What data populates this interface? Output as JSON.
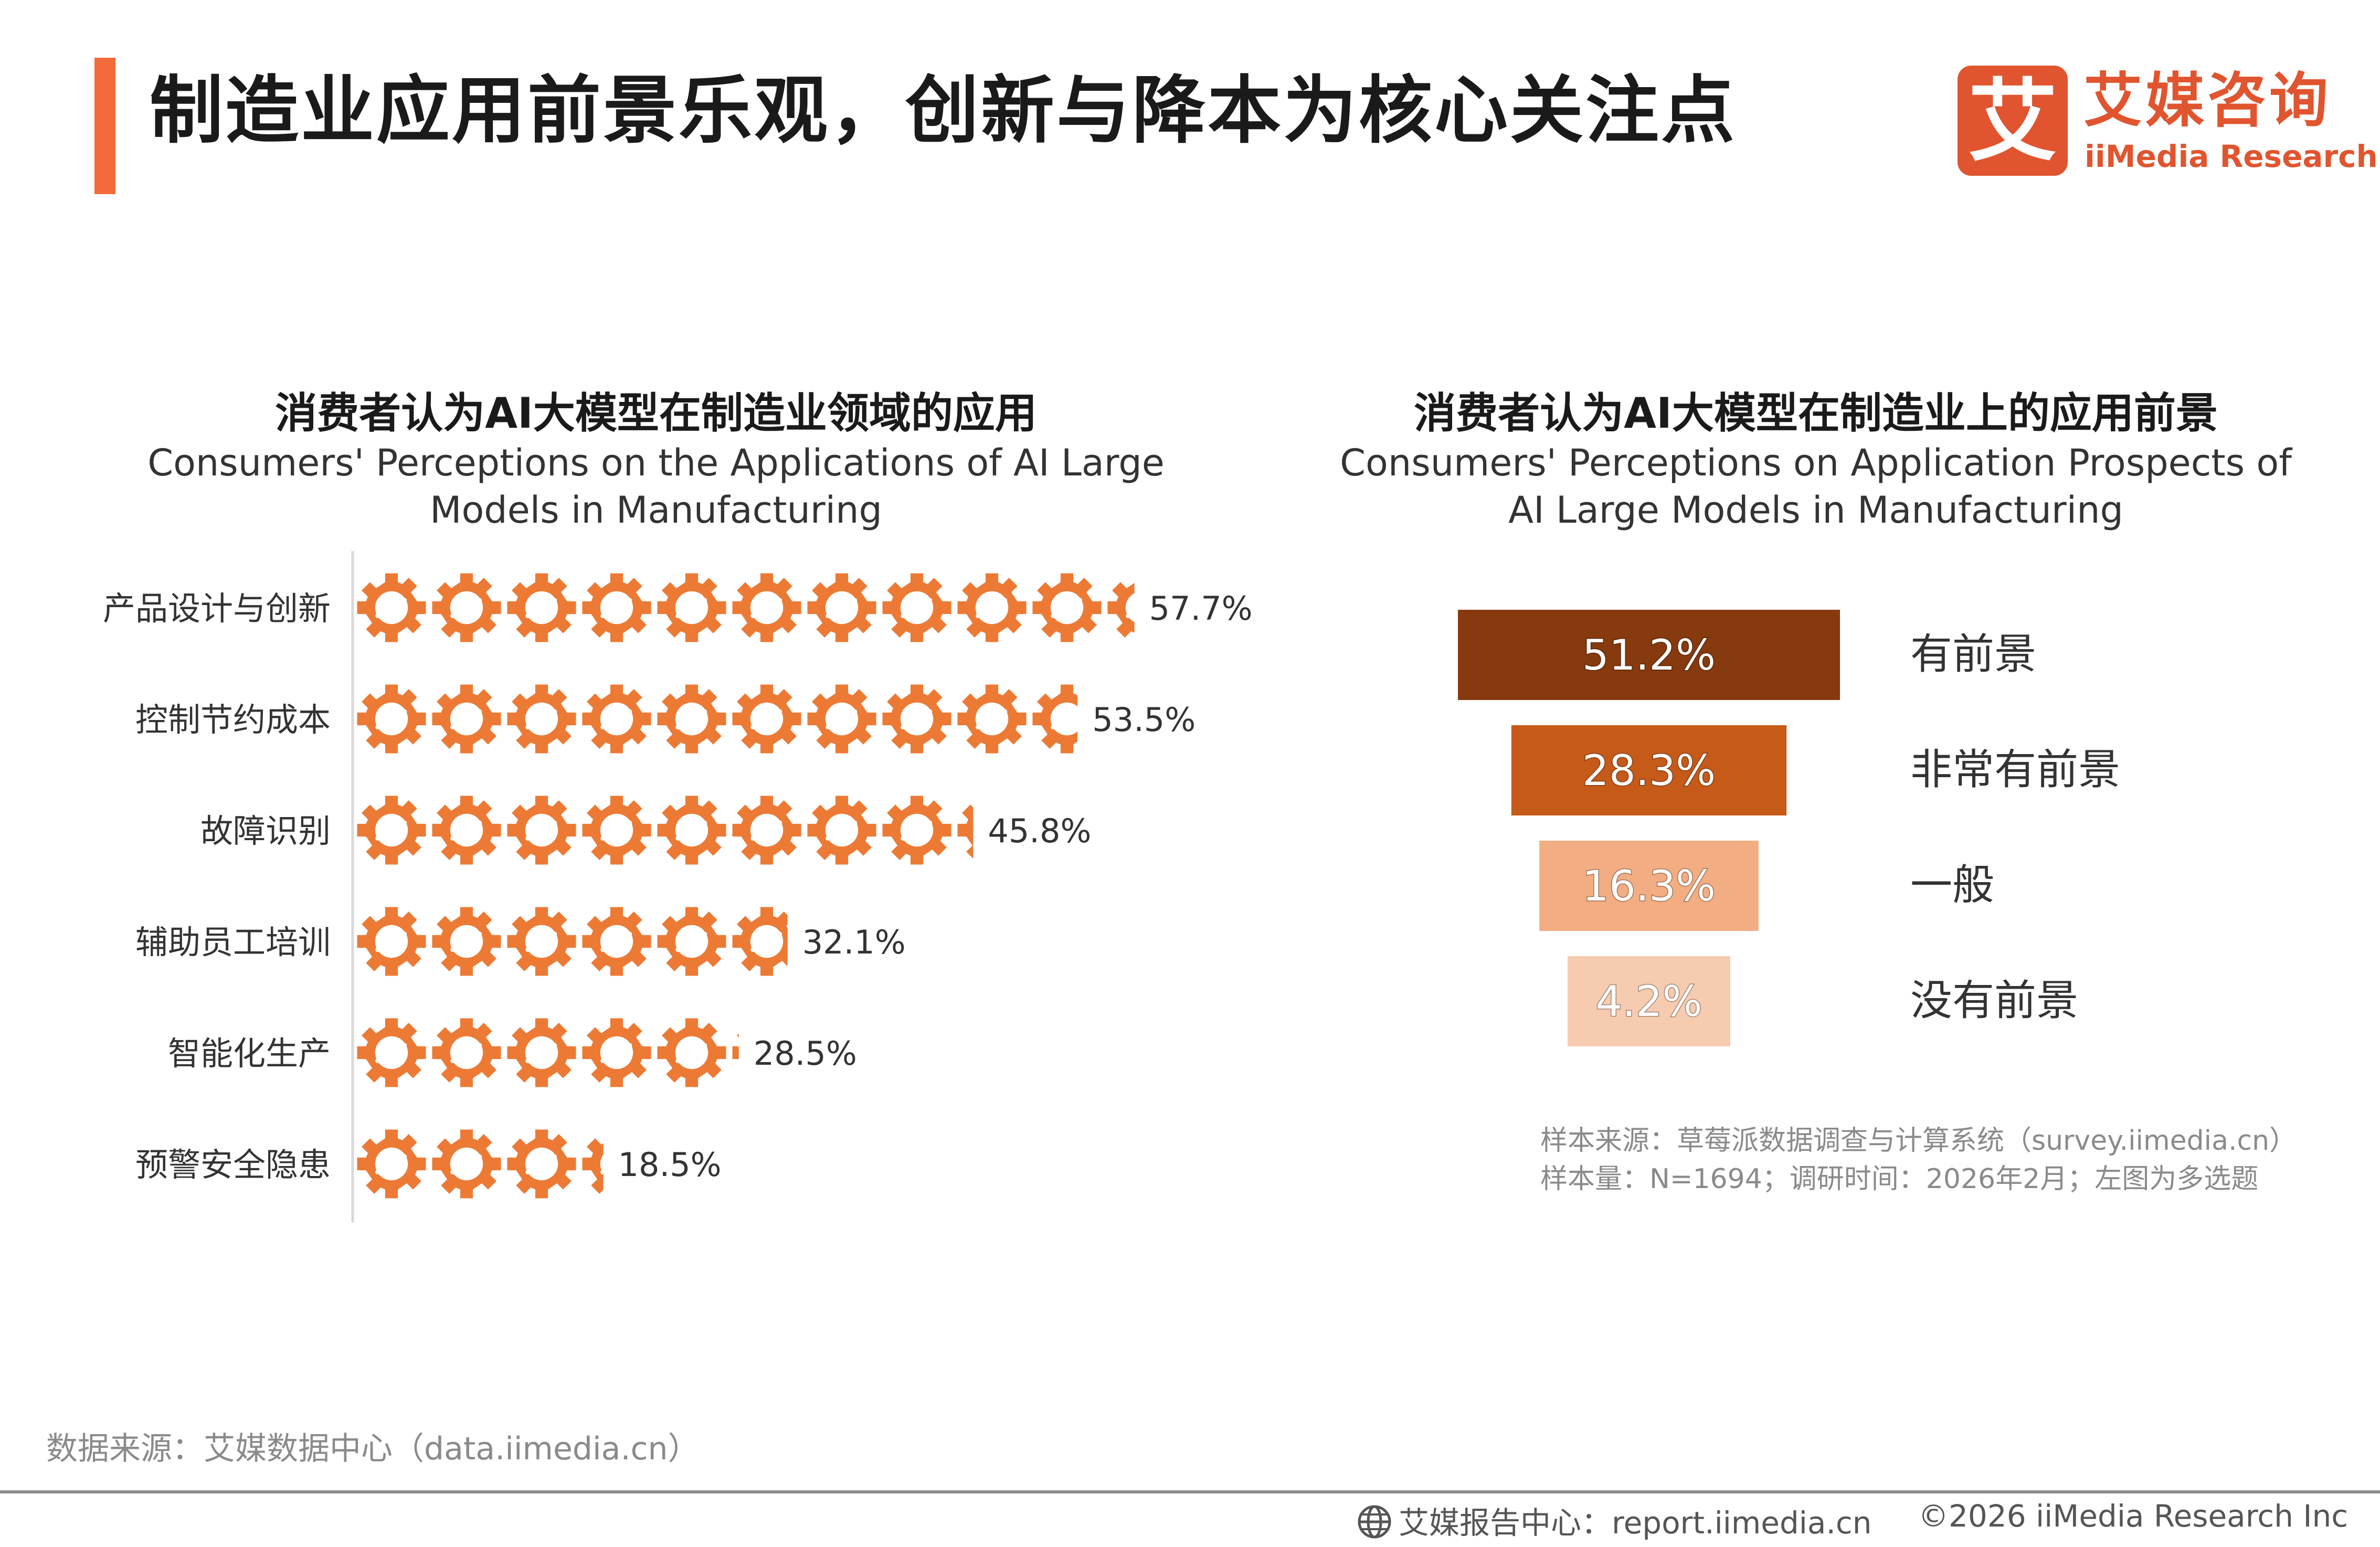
{
  "header": {
    "title": "制造业应用前景乐观，创新与降本为核心关注点",
    "accent_color": "#f26b3a"
  },
  "logo": {
    "mark_text": "艾",
    "name_cn": "艾媒咨询",
    "name_en": "iiMedia Research",
    "color": "#e0552f"
  },
  "chart_data": [
    {
      "type": "bar",
      "title": "消费者认为AI大模型在制造业领域的应用",
      "subtitle": "Consumers' Perceptions on the Applications of AI Large Models in Manufacturing",
      "categories": [
        "产品设计与创新",
        "控制节约成本",
        "故障识别",
        "辅助员工培训",
        "智能化生产",
        "预警安全隐患"
      ],
      "values": [
        57.7,
        53.5,
        45.8,
        32.1,
        28.5,
        18.5
      ],
      "value_labels": [
        "57.7%",
        "53.5%",
        "45.8%",
        "32.1%",
        "28.5%",
        "18.5%"
      ],
      "orientation": "horizontal",
      "mark": "gear-icon",
      "bar_color": "#ec7a35",
      "xlim": [
        0,
        60
      ]
    },
    {
      "type": "bar",
      "title": "消费者认为AI大模型在制造业上的应用前景",
      "subtitle": "Consumers' Perceptions on Application Prospects of AI Large Models in Manufacturing",
      "shape": "funnel",
      "categories": [
        "有前景",
        "非常有前景",
        "一般",
        "没有前景"
      ],
      "values": [
        51.2,
        28.3,
        16.3,
        4.2
      ],
      "value_labels": [
        "51.2%",
        "28.3%",
        "16.3%",
        "4.2%"
      ],
      "colors": [
        "#863a0d",
        "#c55a19",
        "#f2ad83",
        "#f6cbb0"
      ]
    }
  ],
  "notes": {
    "sample_line_1": "样本来源：草莓派数据调查与计算系统（survey.iimedia.cn）",
    "sample_line_2": "样本量：N=1694；调研时间：2026年2月；左图为多选题"
  },
  "footer": {
    "source": "数据来源：艾媒数据中心（data.iimedia.cn）",
    "report_center": "艾媒报告中心：report.iimedia.cn",
    "copyright": "©2026  iiMedia Research  Inc"
  }
}
